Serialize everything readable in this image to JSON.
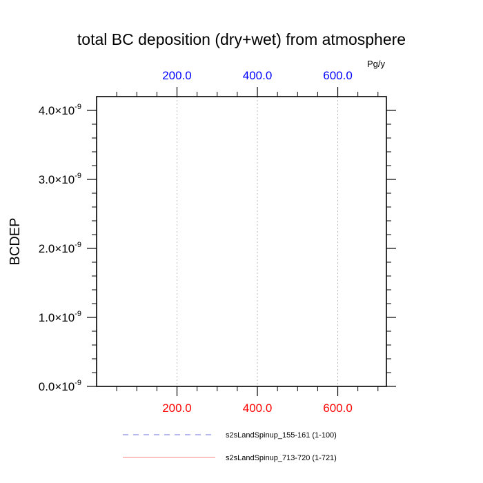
{
  "chart_data": {
    "type": "line",
    "title": "total BC deposition (dry+wet) from atmosphere",
    "ylabel": "BCDEP",
    "units": "Pg/y",
    "xlim": [
      0,
      721
    ],
    "ylim": [
      0.0,
      4.2
    ],
    "y_exponent": "-9",
    "x_ticks": [
      "200.0",
      "400.0",
      "600.0"
    ],
    "x_tick_values": [
      200,
      400,
      600
    ],
    "y_ticks": [
      "0.0",
      "1.0",
      "2.0",
      "3.0",
      "4.0"
    ],
    "y_tick_values": [
      0,
      1,
      2,
      3,
      4
    ],
    "top_axis_color": "#0000ff",
    "bottom_axis_color": "#ff0000",
    "grid": "dotted vertical at x ticks",
    "legend_position": "bottom",
    "series": [
      {
        "name": "s2sLandSpinup_155-161 (1-100)",
        "color": "#6f6fe0",
        "dash": "dashed",
        "x": [],
        "y": []
      },
      {
        "name": "s2sLandSpinup_713-720 (1-721)",
        "color": "#ff8080",
        "dash": "solid",
        "x": [],
        "y": []
      }
    ]
  }
}
